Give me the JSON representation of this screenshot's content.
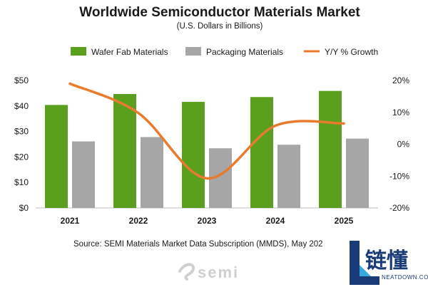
{
  "chart_data": {
    "type": "bar",
    "title": "Worldwide Semiconductor Materials Market",
    "subtitle": "(U.S. Dollars in Billions)",
    "categories": [
      "2021",
      "2022",
      "2023",
      "2024",
      "2025"
    ],
    "series": [
      {
        "name": "Wafer Fab Materials",
        "type": "bar",
        "axis": "left",
        "color": "#5aa01e",
        "values": [
          40.4,
          44.7,
          41.6,
          43.5,
          45.9
        ]
      },
      {
        "name": "Packaging  Materials",
        "type": "bar",
        "axis": "left",
        "color": "#a6a6a6",
        "values": [
          26.1,
          27.8,
          23.4,
          24.8,
          27.2
        ]
      },
      {
        "name": "Y/Y % Growth",
        "type": "line",
        "axis": "right",
        "color": "#e87b2d",
        "values": [
          19.0,
          9.8,
          -10.7,
          5.8,
          6.5
        ]
      }
    ],
    "y_left": {
      "ticks": [
        "$0",
        "$10",
        "$20",
        "$30",
        "$40",
        "$50"
      ],
      "ylim": [
        0,
        50
      ]
    },
    "y_right": {
      "ticks": [
        "-20%",
        "-10%",
        "0%",
        "10%",
        "20%"
      ],
      "ylim": [
        -20,
        20
      ]
    },
    "legend_position": "top",
    "grid": false
  },
  "source": "Source:  SEMI Materials Market Data Subscription (MMDS), May 202",
  "logo": "semi",
  "watermark": {
    "chinese": "链懂",
    "english": "NEATDOWN.COM"
  }
}
